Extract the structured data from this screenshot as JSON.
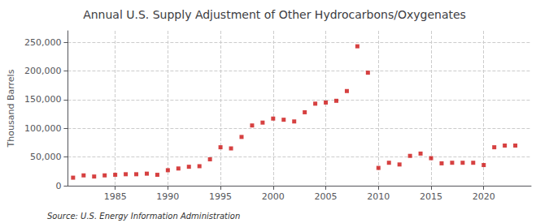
{
  "chart_data": {
    "type": "scatter",
    "title": "Annual U.S. Supply Adjustment of Other Hydrocarbons/Oxygenates",
    "ylabel": "Thousand Barrels",
    "annotations": [
      "Source: U.S. Energy Information Administration"
    ],
    "x": [
      1981,
      1982,
      1983,
      1984,
      1985,
      1986,
      1987,
      1988,
      1989,
      1990,
      1991,
      1992,
      1993,
      1994,
      1995,
      1996,
      1997,
      1998,
      1999,
      2000,
      2001,
      2002,
      2003,
      2004,
      2005,
      2006,
      2007,
      2008,
      2009,
      2010,
      2011,
      2012,
      2013,
      2014,
      2015,
      2016,
      2017,
      2018,
      2019,
      2020,
      2021,
      2022,
      2023
    ],
    "values": [
      14000,
      18000,
      16000,
      18000,
      19000,
      20000,
      20000,
      21000,
      19000,
      27000,
      30000,
      33000,
      34000,
      46000,
      67000,
      65000,
      85000,
      105000,
      110000,
      117000,
      115000,
      112000,
      128000,
      143000,
      145000,
      148000,
      165000,
      243000,
      197000,
      31000,
      40000,
      37000,
      52000,
      56000,
      48000,
      39000,
      40000,
      40000,
      40000,
      36000,
      67000,
      70000,
      70000
    ],
    "color": "#cc1111",
    "marker": "square",
    "xlim": [
      1980.5,
      2024.5
    ],
    "xticks": [
      1985,
      1990,
      1995,
      2000,
      2005,
      2010,
      2015,
      2020
    ],
    "ylim": [
      0,
      270000
    ],
    "yticks": [
      0,
      {
        "value": 50000,
        "label": "50,000"
      },
      {
        "value": 100000,
        "label": "100,000"
      },
      {
        "value": 150000,
        "label": "150,000"
      },
      {
        "value": 200000,
        "label": "200,000"
      },
      {
        "value": 250000,
        "label": "250,000"
      }
    ],
    "grid": true
  }
}
